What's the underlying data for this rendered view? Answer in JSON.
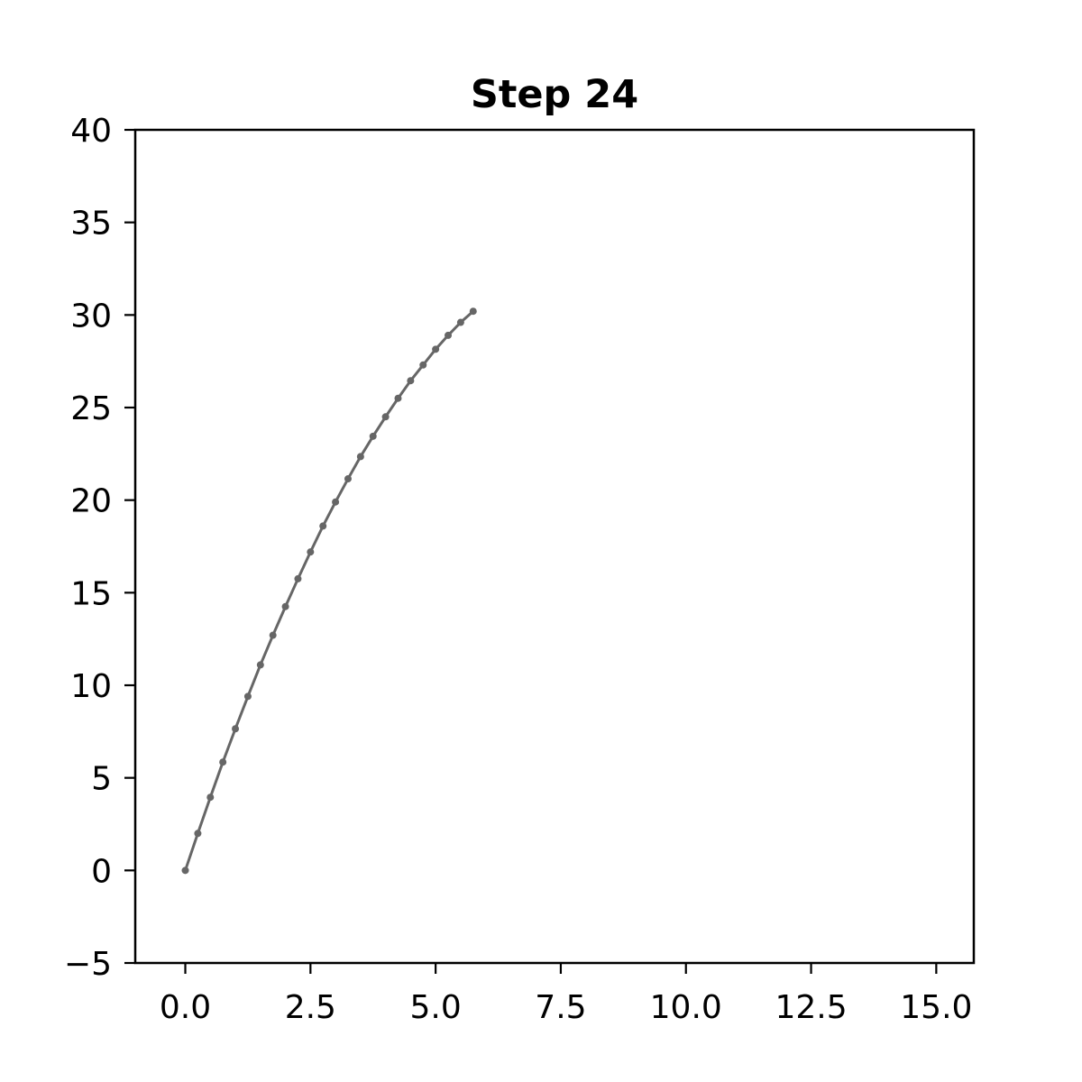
{
  "chart_data": {
    "type": "line",
    "title": "Step 24",
    "xlabel": "",
    "ylabel": "",
    "xlim": [
      -1.0,
      15.75
    ],
    "ylim": [
      -5,
      40
    ],
    "x_ticks": [
      0.0,
      2.5,
      5.0,
      7.5,
      10.0,
      12.5,
      15.0
    ],
    "x_tick_labels": [
      "0.0",
      "2.5",
      "5.0",
      "7.5",
      "10.0",
      "12.5",
      "15.0"
    ],
    "y_ticks": [
      -5,
      0,
      5,
      10,
      15,
      20,
      25,
      30,
      35,
      40
    ],
    "y_tick_labels": [
      "−5",
      "0",
      "5",
      "10",
      "15",
      "20",
      "25",
      "30",
      "35",
      "40"
    ],
    "grid": false,
    "legend": "none",
    "series": [
      {
        "color": "#666666",
        "marker": "dot",
        "x": [
          0.0,
          0.25,
          0.5,
          0.75,
          1.0,
          1.25,
          1.5,
          1.75,
          2.0,
          2.25,
          2.5,
          2.75,
          3.0,
          3.25,
          3.5,
          3.75,
          4.0,
          4.25,
          4.5,
          4.75,
          5.0,
          5.25,
          5.5,
          5.75
        ],
        "y": [
          0.0,
          2.0,
          3.95,
          5.85,
          7.65,
          9.4,
          11.1,
          12.7,
          14.25,
          15.75,
          17.2,
          18.6,
          19.9,
          21.15,
          22.35,
          23.45,
          24.5,
          25.5,
          26.45,
          27.3,
          28.15,
          28.9,
          29.6,
          30.2
        ]
      }
    ]
  }
}
